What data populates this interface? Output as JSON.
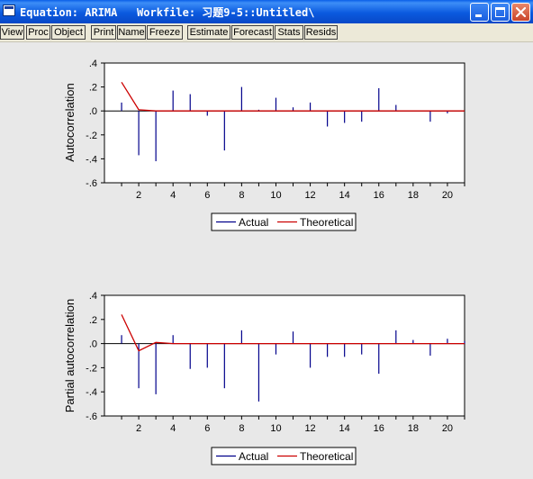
{
  "window": {
    "title": "Equation: ARIMA   Workfile: 习题9-5::Untitled\\"
  },
  "title_buttons": [
    "minimize-icon",
    "maximize-icon",
    "close-icon"
  ],
  "toolbar": {
    "buttons": [
      "View",
      "Proc",
      "Object",
      "Print",
      "Name",
      "Freeze",
      "Estimate",
      "Forecast",
      "Stats",
      "Resids"
    ]
  },
  "colors": {
    "actual": "#00008B",
    "theoretical": "#CC0000",
    "plot_bg": "#FFFFFF",
    "panel_bg": "#E8E8E8"
  },
  "chart_data": [
    {
      "type": "bar",
      "ylabel": "Autocorrelation",
      "ylim": [
        -0.6,
        0.4
      ],
      "yticks": [
        ".4",
        ".2",
        ".0",
        "-.2",
        "-.4",
        "-.6"
      ],
      "xlim": [
        0,
        21
      ],
      "xticks": [
        "2",
        "4",
        "6",
        "8",
        "10",
        "12",
        "14",
        "16",
        "18",
        "20"
      ],
      "legend": [
        "Actual",
        "Theoretical"
      ],
      "legend_position": "bottom",
      "grid": false,
      "series": [
        {
          "name": "Actual",
          "x": [
            1,
            2,
            3,
            4,
            5,
            6,
            7,
            8,
            9,
            10,
            11,
            12,
            13,
            14,
            15,
            16,
            17,
            18,
            19,
            20
          ],
          "values": [
            0.07,
            -0.37,
            -0.42,
            0.17,
            0.14,
            -0.04,
            -0.33,
            0.2,
            0.01,
            0.11,
            0.03,
            0.07,
            -0.13,
            -0.1,
            -0.09,
            0.19,
            0.05,
            0.0,
            -0.09,
            -0.02
          ]
        },
        {
          "name": "Theoretical",
          "x": [
            1,
            2,
            3,
            4,
            5,
            6,
            7,
            8,
            9,
            10,
            11,
            12,
            13,
            14,
            15,
            16,
            17,
            18,
            19,
            20,
            21
          ],
          "values": [
            0.24,
            0.01,
            0,
            0,
            0,
            0,
            0,
            0,
            0,
            0,
            0,
            0,
            0,
            0,
            0,
            0,
            0,
            0,
            0,
            0,
            0
          ]
        }
      ]
    },
    {
      "type": "bar",
      "ylabel": "Partial autocorrelation",
      "ylim": [
        -0.6,
        0.4
      ],
      "yticks": [
        ".4",
        ".2",
        ".0",
        "-.2",
        "-.4",
        "-.6"
      ],
      "xlim": [
        0,
        21
      ],
      "xticks": [
        "2",
        "4",
        "6",
        "8",
        "10",
        "12",
        "14",
        "16",
        "18",
        "20"
      ],
      "legend": [
        "Actual",
        "Theoretical"
      ],
      "legend_position": "bottom",
      "grid": false,
      "series": [
        {
          "name": "Actual",
          "x": [
            1,
            2,
            3,
            4,
            5,
            6,
            7,
            8,
            9,
            10,
            11,
            12,
            13,
            14,
            15,
            16,
            17,
            18,
            19,
            20,
            21
          ],
          "values": [
            0.07,
            -0.37,
            -0.42,
            0.07,
            -0.21,
            -0.2,
            -0.37,
            0.11,
            -0.48,
            -0.09,
            0.1,
            -0.2,
            -0.11,
            -0.11,
            -0.09,
            -0.25,
            0.11,
            0.03,
            -0.1,
            0.04,
            0.02
          ]
        },
        {
          "name": "Theoretical",
          "x": [
            1,
            2,
            3,
            4,
            5,
            6,
            7,
            8,
            9,
            10,
            11,
            12,
            13,
            14,
            15,
            16,
            17,
            18,
            19,
            20,
            21
          ],
          "values": [
            0.24,
            -0.06,
            0.01,
            0,
            0,
            0,
            0,
            0,
            0,
            0,
            0,
            0,
            0,
            0,
            0,
            0,
            0,
            0,
            0,
            0,
            0
          ]
        }
      ]
    }
  ]
}
